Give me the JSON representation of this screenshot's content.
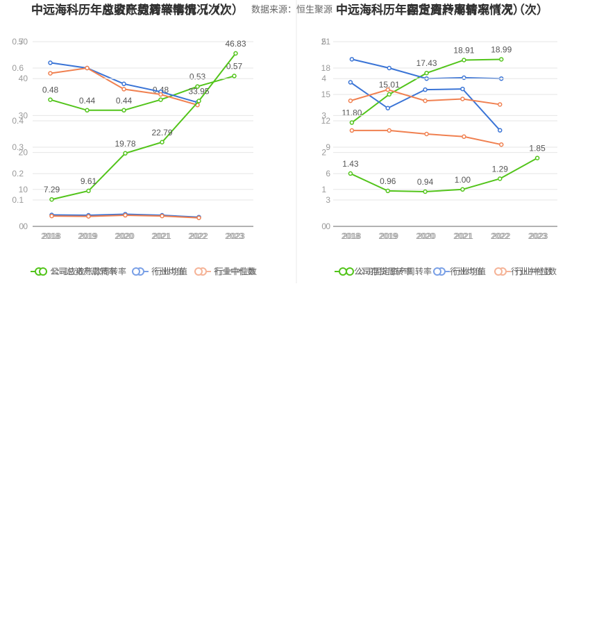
{
  "source": "数据来源：恒生聚源",
  "charts": [
    {
      "title_a": "中远海科历年总资产周转率情况（次）",
      "title_b": "中远海科历年应收账款周转率情况（次）",
      "legend_a": [
        "公司总资产周转率",
        "行业均值",
        "行业中位数"
      ],
      "legend_b": [
        "公司应收账款周转率",
        "行业均值",
        "行业中位数"
      ]
    },
    {
      "title_a": "中远海科历年存货周转率情况（次）",
      "title_b": "中远海科历年固定资产周转率情况（次）",
      "legend_a": [
        "公司存货周转率",
        "行业均值",
        "行业中位数"
      ],
      "legend_b": [
        "公司固定资产周转率",
        "行业均值",
        "行业中位数"
      ]
    }
  ],
  "chart_data": [
    {
      "type": "line",
      "title": "中远海科历年总资产周转率情况（次）",
      "x": [
        "2018",
        "2019",
        "2020",
        "2021",
        "2022",
        "2023"
      ],
      "ylim": [
        0,
        0.7
      ],
      "yticks": [
        0,
        0.1,
        0.2,
        0.3,
        0.4,
        0.6,
        0.7
      ],
      "legend_position": "bottom",
      "series": [
        {
          "name": "公司总资产周转率",
          "color": "#52c41a",
          "values": [
            0.48,
            0.44,
            0.44,
            0.48,
            0.53,
            0.57
          ],
          "labels": [
            "0.48",
            "0.44",
            "0.44",
            "0.48",
            "0.53",
            "0.57"
          ]
        },
        {
          "name": "行业均值",
          "color": "#3a74d6",
          "values": [
            0.62,
            0.6,
            0.54,
            0.51,
            0.47,
            null
          ]
        },
        {
          "name": "行业中位数",
          "color": "#f08050",
          "values": [
            0.58,
            0.6,
            0.52,
            0.5,
            0.46,
            null
          ]
        }
      ]
    },
    {
      "type": "line",
      "title": "中远海科历年应收账款周转率情况（次）",
      "x": [
        "2018",
        "2019",
        "2020",
        "2021",
        "2022",
        "2023"
      ],
      "ylim": [
        0,
        50
      ],
      "yticks": [
        0,
        10,
        20,
        30,
        40,
        50
      ],
      "legend_position": "bottom",
      "series": [
        {
          "name": "公司应收账款周转率",
          "color": "#52c41a",
          "values": [
            7.29,
            9.61,
            19.78,
            22.79,
            33.95,
            46.83
          ],
          "labels": [
            "7.29",
            "9.61",
            "19.78",
            "22.79",
            "33.95",
            "46.83"
          ]
        },
        {
          "name": "行业均值",
          "color": "#3a74d6",
          "values": [
            3.1,
            3.0,
            3.3,
            3.0,
            2.5,
            null
          ]
        },
        {
          "name": "行业中位数",
          "color": "#f08050",
          "values": [
            2.8,
            2.7,
            3.0,
            2.8,
            2.3,
            null
          ]
        }
      ]
    },
    {
      "type": "line",
      "title": "中远海科历年存货周转率情况（次）",
      "x": [
        "2018",
        "2019",
        "2020",
        "2021",
        "2022",
        "2023"
      ],
      "ylim": [
        0,
        21
      ],
      "yticks": [
        0,
        3,
        6,
        9,
        12,
        15,
        18,
        21
      ],
      "legend_position": "bottom",
      "series": [
        {
          "name": "公司存货周转率",
          "color": "#52c41a",
          "values": [
            11.8,
            15.01,
            17.43,
            18.91,
            18.99,
            null
          ],
          "labels": [
            "11.80",
            "15.01",
            "17.43",
            "18.91",
            "18.99",
            ""
          ]
        },
        {
          "name": "行业均值",
          "color": "#3a74d6",
          "values": [
            19.0,
            18.0,
            16.8,
            16.9,
            16.8,
            null
          ]
        },
        {
          "name": "行业中位数",
          "color": "#f08050",
          "values": [
            10.9,
            10.9,
            10.5,
            10.2,
            9.3,
            null
          ]
        }
      ]
    },
    {
      "type": "line",
      "title": "中远海科历年固定资产周转率情况（次）",
      "x": [
        "2018",
        "2019",
        "2020",
        "2021",
        "2022",
        "2023"
      ],
      "ylim": [
        0,
        5
      ],
      "yticks": [
        0,
        1,
        2,
        3,
        4,
        5
      ],
      "legend_position": "bottom",
      "series": [
        {
          "name": "公司固定资产周转率",
          "color": "#52c41a",
          "values": [
            1.43,
            0.96,
            0.94,
            1.0,
            1.29,
            1.85
          ],
          "labels": [
            "1.43",
            "0.96",
            "0.94",
            "1.00",
            "1.29",
            "1.85"
          ]
        },
        {
          "name": "行业均值",
          "color": "#3a74d6",
          "values": [
            3.9,
            3.2,
            3.7,
            3.72,
            2.6,
            null
          ]
        },
        {
          "name": "行业中位数",
          "color": "#f08050",
          "values": [
            3.4,
            3.7,
            3.4,
            3.45,
            3.3,
            null
          ]
        }
      ]
    }
  ]
}
